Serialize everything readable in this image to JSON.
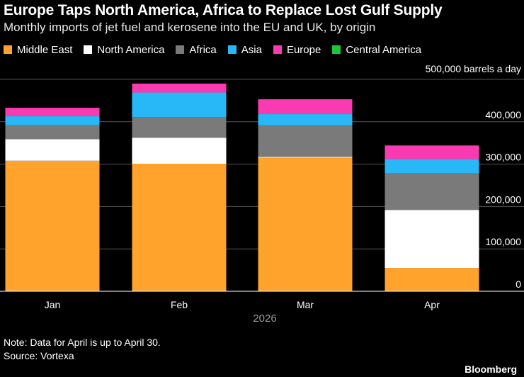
{
  "header": {
    "title": "Europe Taps North America, Africa to Replace Lost Gulf Supply",
    "subtitle": "Monthly imports of jet fuel and kerosene into the EU and UK, by origin"
  },
  "footer": {
    "note": "Note: Data for April is up to April 30.",
    "source": "Source: Vortexa",
    "brand": "Bloomberg"
  },
  "chart_data": {
    "type": "bar",
    "stacked": true,
    "categories": [
      "Jan",
      "Feb",
      "Mar",
      "Apr"
    ],
    "xlabel": "2026",
    "unit_label": "500,000 barrels a day",
    "ylim": [
      0,
      500000
    ],
    "yticks": [
      0,
      100000,
      200000,
      300000,
      400000
    ],
    "ytick_labels": [
      "0",
      "100,000",
      "200,000",
      "300,000",
      "400,000"
    ],
    "grid": true,
    "legend_position": "top",
    "series": [
      {
        "name": "Middle East",
        "color": "#ffa32c",
        "values": [
          308000,
          301000,
          315000,
          55000
        ]
      },
      {
        "name": "North America",
        "color": "#ffffff",
        "values": [
          51000,
          61000,
          2000,
          137000
        ]
      },
      {
        "name": "Africa",
        "color": "#7a7a7a",
        "values": [
          33000,
          49000,
          74000,
          86000
        ]
      },
      {
        "name": "Asia",
        "color": "#28b8f8",
        "values": [
          21000,
          58000,
          27000,
          34000
        ]
      },
      {
        "name": "Europe",
        "color": "#fa3ab0",
        "values": [
          20000,
          21000,
          35000,
          32000
        ]
      },
      {
        "name": "Central America",
        "color": "#1ec43c",
        "values": [
          0,
          0,
          0,
          0
        ]
      }
    ]
  }
}
